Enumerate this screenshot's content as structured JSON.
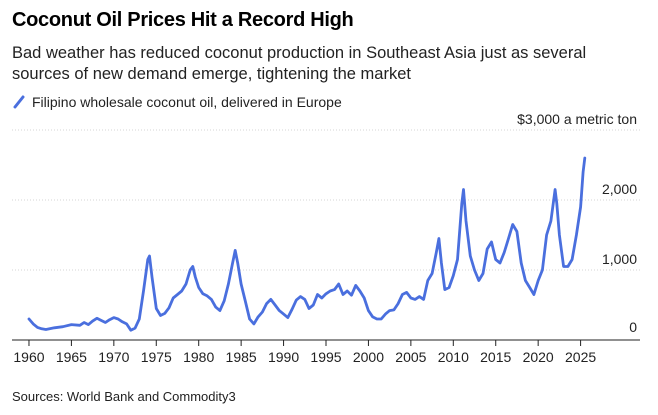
{
  "title": "Coconut Oil Prices Hit a Record High",
  "subtitle": "Bad weather has reduced coconut production in Southeast Asia just as several sources of new demand emerge, tightening the market",
  "legend": {
    "label": "Filipino wholesale coconut oil, delivered in Europe"
  },
  "source": "Sources: World Bank and Commodity3",
  "colors": {
    "line": "#4a6fde",
    "grid": "#d4d4d4",
    "axis": "#222222"
  },
  "chart_data": {
    "type": "line",
    "title": "Coconut Oil Prices Hit a Record High",
    "ylabel": "$3,000 a metric ton",
    "xlabel": "",
    "xlim": [
      1958,
      2032
    ],
    "ylim": [
      0,
      3000
    ],
    "x_ticks": [
      1960,
      1965,
      1970,
      1975,
      1980,
      1985,
      1990,
      1995,
      2000,
      2005,
      2010,
      2015,
      2020,
      2025
    ],
    "y_ticks": [
      {
        "value": 0,
        "label": "0"
      },
      {
        "value": 1000,
        "label": "1,000"
      },
      {
        "value": 2000,
        "label": "2,000"
      },
      {
        "value": 3000,
        "label": "$3,000 a metric ton"
      }
    ],
    "series": [
      {
        "name": "Filipino wholesale coconut oil, delivered in Europe",
        "points": [
          [
            1960.0,
            300
          ],
          [
            1960.5,
            230
          ],
          [
            1961.0,
            180
          ],
          [
            1961.5,
            160
          ],
          [
            1962.0,
            150
          ],
          [
            1963.0,
            175
          ],
          [
            1964.0,
            190
          ],
          [
            1965.0,
            220
          ],
          [
            1966.0,
            210
          ],
          [
            1966.5,
            250
          ],
          [
            1967.0,
            220
          ],
          [
            1967.5,
            270
          ],
          [
            1968.0,
            310
          ],
          [
            1968.5,
            280
          ],
          [
            1969.0,
            250
          ],
          [
            1969.5,
            290
          ],
          [
            1970.0,
            320
          ],
          [
            1970.5,
            300
          ],
          [
            1971.0,
            260
          ],
          [
            1971.5,
            230
          ],
          [
            1972.0,
            140
          ],
          [
            1972.5,
            170
          ],
          [
            1973.0,
            300
          ],
          [
            1973.5,
            700
          ],
          [
            1974.0,
            1150
          ],
          [
            1974.2,
            1200
          ],
          [
            1974.5,
            900
          ],
          [
            1975.0,
            450
          ],
          [
            1975.5,
            350
          ],
          [
            1976.0,
            380
          ],
          [
            1976.5,
            460
          ],
          [
            1977.0,
            600
          ],
          [
            1977.5,
            650
          ],
          [
            1978.0,
            700
          ],
          [
            1978.5,
            800
          ],
          [
            1979.0,
            1000
          ],
          [
            1979.3,
            1050
          ],
          [
            1979.6,
            900
          ],
          [
            1980.0,
            750
          ],
          [
            1980.5,
            660
          ],
          [
            1981.0,
            630
          ],
          [
            1981.5,
            580
          ],
          [
            1982.0,
            470
          ],
          [
            1982.5,
            420
          ],
          [
            1983.0,
            560
          ],
          [
            1983.5,
            800
          ],
          [
            1984.0,
            1100
          ],
          [
            1984.3,
            1280
          ],
          [
            1984.6,
            1100
          ],
          [
            1985.0,
            800
          ],
          [
            1985.5,
            550
          ],
          [
            1986.0,
            300
          ],
          [
            1986.5,
            230
          ],
          [
            1987.0,
            330
          ],
          [
            1987.5,
            400
          ],
          [
            1988.0,
            520
          ],
          [
            1988.5,
            580
          ],
          [
            1989.0,
            500
          ],
          [
            1989.5,
            420
          ],
          [
            1990.0,
            370
          ],
          [
            1990.5,
            320
          ],
          [
            1991.0,
            440
          ],
          [
            1991.5,
            570
          ],
          [
            1992.0,
            620
          ],
          [
            1992.5,
            580
          ],
          [
            1993.0,
            450
          ],
          [
            1993.5,
            500
          ],
          [
            1994.0,
            650
          ],
          [
            1994.5,
            600
          ],
          [
            1995.0,
            660
          ],
          [
            1995.5,
            700
          ],
          [
            1996.0,
            720
          ],
          [
            1996.5,
            800
          ],
          [
            1997.0,
            650
          ],
          [
            1997.5,
            700
          ],
          [
            1998.0,
            640
          ],
          [
            1998.5,
            780
          ],
          [
            1999.0,
            700
          ],
          [
            1999.5,
            600
          ],
          [
            2000.0,
            420
          ],
          [
            2000.5,
            330
          ],
          [
            2001.0,
            300
          ],
          [
            2001.5,
            300
          ],
          [
            2002.0,
            370
          ],
          [
            2002.5,
            420
          ],
          [
            2003.0,
            430
          ],
          [
            2003.5,
            520
          ],
          [
            2004.0,
            650
          ],
          [
            2004.5,
            680
          ],
          [
            2005.0,
            600
          ],
          [
            2005.5,
            580
          ],
          [
            2006.0,
            620
          ],
          [
            2006.5,
            580
          ],
          [
            2007.0,
            850
          ],
          [
            2007.5,
            950
          ],
          [
            2008.0,
            1250
          ],
          [
            2008.3,
            1450
          ],
          [
            2008.6,
            1100
          ],
          [
            2009.0,
            720
          ],
          [
            2009.5,
            750
          ],
          [
            2010.0,
            920
          ],
          [
            2010.5,
            1150
          ],
          [
            2011.0,
            1950
          ],
          [
            2011.2,
            2150
          ],
          [
            2011.5,
            1700
          ],
          [
            2012.0,
            1200
          ],
          [
            2012.5,
            1000
          ],
          [
            2013.0,
            850
          ],
          [
            2013.5,
            950
          ],
          [
            2014.0,
            1300
          ],
          [
            2014.5,
            1400
          ],
          [
            2015.0,
            1150
          ],
          [
            2015.5,
            1100
          ],
          [
            2016.0,
            1250
          ],
          [
            2016.5,
            1450
          ],
          [
            2017.0,
            1650
          ],
          [
            2017.5,
            1550
          ],
          [
            2018.0,
            1100
          ],
          [
            2018.5,
            850
          ],
          [
            2019.0,
            750
          ],
          [
            2019.5,
            650
          ],
          [
            2020.0,
            850
          ],
          [
            2020.5,
            1000
          ],
          [
            2021.0,
            1500
          ],
          [
            2021.5,
            1700
          ],
          [
            2022.0,
            2150
          ],
          [
            2022.2,
            1950
          ],
          [
            2022.5,
            1500
          ],
          [
            2023.0,
            1050
          ],
          [
            2023.5,
            1050
          ],
          [
            2024.0,
            1150
          ],
          [
            2024.5,
            1500
          ],
          [
            2025.0,
            1900
          ],
          [
            2025.3,
            2400
          ],
          [
            2025.5,
            2600
          ]
        ]
      }
    ]
  }
}
